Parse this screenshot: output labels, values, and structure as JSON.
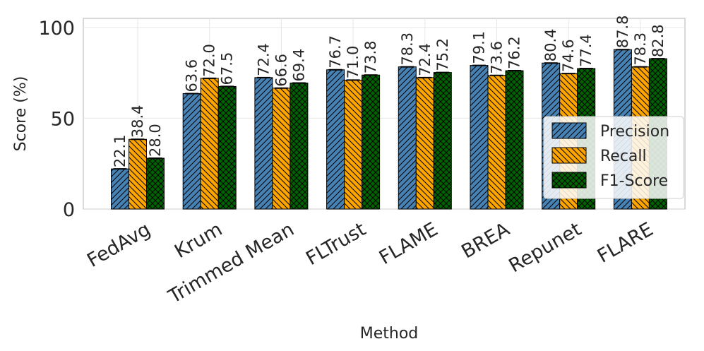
{
  "chart_data": {
    "type": "bar",
    "title": "",
    "xlabel": "Method",
    "ylabel": "Score (%)",
    "ylim": [
      0,
      105
    ],
    "yticks": [
      0,
      50,
      100
    ],
    "grid": true,
    "legend_position": "lower-right",
    "categories": [
      "FedAvg",
      "Krum",
      "Trimmed Mean",
      "FLTrust",
      "FLAME",
      "BREA",
      "Repunet",
      "FLARE"
    ],
    "series": [
      {
        "name": "Precision",
        "color": "#4682b4",
        "hatch": "forward-diagonal",
        "values": [
          22.1,
          63.6,
          72.4,
          76.7,
          78.3,
          79.1,
          80.4,
          87.8
        ]
      },
      {
        "name": "Recall",
        "color": "#ffa500",
        "hatch": "back-diagonal",
        "values": [
          38.4,
          72.0,
          66.6,
          71.0,
          72.4,
          73.6,
          74.6,
          78.3
        ]
      },
      {
        "name": "F1-Score",
        "color": "#006400",
        "hatch": "crosshatch",
        "values": [
          28.0,
          67.5,
          69.4,
          73.8,
          75.2,
          76.2,
          77.4,
          82.8
        ]
      }
    ]
  }
}
